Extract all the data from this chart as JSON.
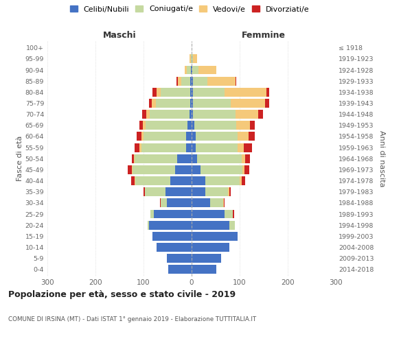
{
  "age_groups": [
    "0-4",
    "5-9",
    "10-14",
    "15-19",
    "20-24",
    "25-29",
    "30-34",
    "35-39",
    "40-44",
    "45-49",
    "50-54",
    "55-59",
    "60-64",
    "65-69",
    "70-74",
    "75-79",
    "80-84",
    "85-89",
    "90-94",
    "95-99",
    "100+"
  ],
  "birth_years": [
    "2014-2018",
    "2009-2013",
    "2004-2008",
    "1999-2003",
    "1994-1998",
    "1989-1993",
    "1984-1988",
    "1979-1983",
    "1974-1978",
    "1969-1973",
    "1964-1968",
    "1959-1963",
    "1954-1958",
    "1949-1953",
    "1944-1948",
    "1939-1943",
    "1934-1938",
    "1929-1933",
    "1924-1928",
    "1919-1923",
    "≤ 1918"
  ],
  "males": {
    "celibi": [
      48,
      52,
      73,
      82,
      88,
      78,
      52,
      55,
      45,
      35,
      30,
      12,
      12,
      8,
      5,
      3,
      3,
      3,
      2,
      0,
      0
    ],
    "coniugati": [
      0,
      0,
      0,
      0,
      3,
      8,
      12,
      42,
      72,
      88,
      88,
      92,
      88,
      88,
      82,
      72,
      62,
      18,
      8,
      2,
      0
    ],
    "vedovi": [
      0,
      0,
      0,
      0,
      0,
      0,
      0,
      0,
      1,
      2,
      2,
      4,
      4,
      5,
      8,
      8,
      8,
      8,
      5,
      2,
      0
    ],
    "divorziati": [
      0,
      0,
      0,
      0,
      0,
      0,
      2,
      3,
      8,
      8,
      5,
      10,
      10,
      8,
      8,
      5,
      8,
      2,
      0,
      0,
      0
    ]
  },
  "females": {
    "nubili": [
      52,
      62,
      78,
      95,
      78,
      68,
      38,
      28,
      28,
      18,
      12,
      8,
      8,
      5,
      3,
      3,
      3,
      3,
      2,
      0,
      0
    ],
    "coniugate": [
      0,
      0,
      0,
      0,
      12,
      18,
      28,
      48,
      72,
      88,
      92,
      88,
      88,
      88,
      88,
      78,
      65,
      30,
      12,
      3,
      0
    ],
    "vedove": [
      0,
      0,
      0,
      0,
      0,
      0,
      1,
      2,
      4,
      4,
      8,
      12,
      22,
      28,
      48,
      72,
      88,
      58,
      38,
      8,
      0
    ],
    "divorziate": [
      0,
      0,
      0,
      0,
      0,
      2,
      2,
      4,
      8,
      10,
      10,
      18,
      14,
      10,
      10,
      8,
      5,
      2,
      0,
      0,
      0
    ]
  },
  "colors": {
    "celibi": "#4472c4",
    "coniugati": "#c5d9a0",
    "vedovi": "#f5c97a",
    "divorziati": "#cc2222"
  },
  "title": "Popolazione per età, sesso e stato civile - 2019",
  "subtitle": "COMUNE DI IRSINA (MT) - Dati ISTAT 1° gennaio 2019 - Elaborazione TUTTITALIA.IT",
  "header_maschi": "Maschi",
  "header_femmine": "Femmine",
  "ylabel_left": "Fasce di età",
  "ylabel_right": "Anni di nascita",
  "xlim": 300,
  "legend_labels": [
    "Celibi/Nubili",
    "Coniugati/e",
    "Vedovi/e",
    "Divorziati/e"
  ]
}
